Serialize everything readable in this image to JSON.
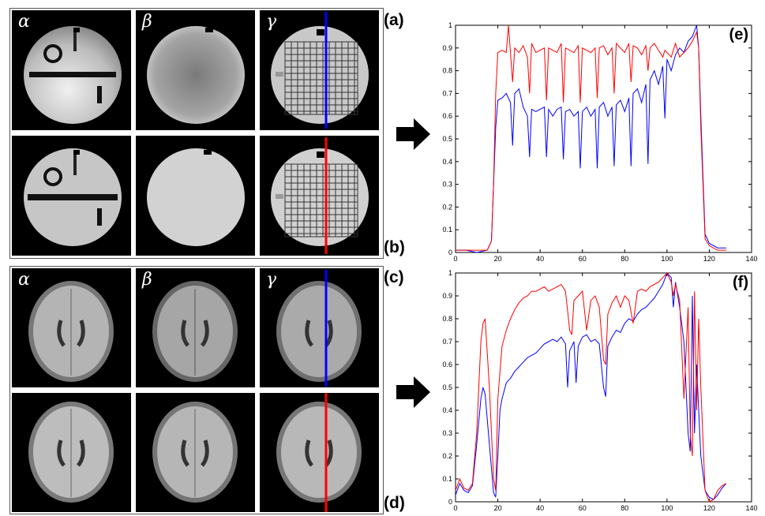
{
  "labels": {
    "row_a": "(a)",
    "row_b": "(b)",
    "row_c": "(c)",
    "row_d": "(d)",
    "chart_e": "(e)",
    "chart_f": "(f)"
  },
  "columns": [
    "α",
    "β",
    "γ"
  ],
  "colors": {
    "line_blue": "#0000ff",
    "line_red": "#ff0000"
  },
  "chart_data": [
    {
      "type": "line",
      "panel": "(e)",
      "xlim": [
        0,
        140
      ],
      "ylim": [
        0,
        1
      ],
      "xticks": [
        "0",
        "20",
        "40",
        "60",
        "80",
        "100",
        "120",
        "140"
      ],
      "yticks": [
        "0",
        "0.1",
        "0.2",
        "0.3",
        "0.4",
        "0.5",
        "0.6",
        "0.7",
        "0.8",
        "0.9",
        "1"
      ],
      "series": [
        {
          "color": "#0000ff",
          "x": [
            0,
            5,
            10,
            15,
            17,
            18,
            19,
            20,
            22,
            24,
            26,
            27,
            28,
            30,
            32,
            34,
            35,
            36,
            38,
            40,
            42,
            43,
            44,
            46,
            48,
            50,
            51,
            52,
            54,
            56,
            58,
            59,
            60,
            62,
            64,
            66,
            67,
            68,
            70,
            72,
            74,
            75,
            76,
            78,
            80,
            82,
            83,
            84,
            86,
            88,
            90,
            91,
            92,
            94,
            96,
            98,
            99,
            100,
            102,
            104,
            106,
            108,
            110,
            112,
            114,
            115,
            116,
            118,
            120,
            124,
            128
          ],
          "y": [
            0.01,
            0.01,
            0.0,
            0.01,
            0.05,
            0.3,
            0.55,
            0.67,
            0.68,
            0.7,
            0.66,
            0.47,
            0.7,
            0.72,
            0.64,
            0.6,
            0.42,
            0.63,
            0.62,
            0.63,
            0.64,
            0.42,
            0.63,
            0.6,
            0.63,
            0.64,
            0.41,
            0.62,
            0.63,
            0.6,
            0.62,
            0.37,
            0.62,
            0.64,
            0.6,
            0.63,
            0.37,
            0.64,
            0.66,
            0.6,
            0.64,
            0.38,
            0.65,
            0.67,
            0.62,
            0.68,
            0.38,
            0.7,
            0.72,
            0.66,
            0.74,
            0.39,
            0.76,
            0.8,
            0.74,
            0.82,
            0.59,
            0.85,
            0.8,
            0.87,
            0.9,
            0.88,
            0.93,
            0.95,
            1.0,
            0.9,
            0.6,
            0.08,
            0.04,
            0.02,
            0.02
          ]
        },
        {
          "color": "#ff0000",
          "x": [
            0,
            5,
            10,
            15,
            17,
            18,
            19,
            20,
            22,
            24,
            25,
            26,
            27,
            28,
            30,
            32,
            34,
            35,
            36,
            38,
            40,
            42,
            43,
            44,
            46,
            48,
            50,
            51,
            52,
            54,
            56,
            58,
            59,
            60,
            62,
            64,
            66,
            67,
            68,
            70,
            72,
            74,
            75,
            76,
            78,
            80,
            82,
            83,
            84,
            86,
            88,
            90,
            91,
            92,
            94,
            96,
            98,
            99,
            100,
            102,
            104,
            106,
            108,
            110,
            112,
            114,
            115,
            116,
            118,
            120,
            124,
            128
          ],
          "y": [
            0.01,
            0.01,
            0.01,
            0.01,
            0.05,
            0.3,
            0.7,
            0.88,
            0.89,
            0.88,
            1.0,
            0.88,
            0.75,
            0.9,
            0.88,
            0.91,
            0.86,
            0.7,
            0.92,
            0.88,
            0.89,
            0.9,
            0.67,
            0.9,
            0.89,
            0.88,
            0.92,
            0.66,
            0.9,
            0.89,
            0.88,
            0.91,
            0.66,
            0.9,
            0.89,
            0.88,
            0.9,
            0.68,
            0.9,
            0.91,
            0.87,
            0.9,
            0.7,
            0.92,
            0.9,
            0.88,
            0.92,
            0.75,
            0.91,
            0.9,
            0.87,
            0.91,
            0.8,
            0.9,
            0.92,
            0.89,
            0.86,
            0.89,
            0.88,
            0.86,
            0.92,
            0.86,
            0.88,
            0.9,
            0.93,
            0.97,
            0.9,
            0.55,
            0.06,
            0.03,
            0.01,
            0.01
          ]
        }
      ]
    },
    {
      "type": "line",
      "panel": "(f)",
      "xlim": [
        0,
        140
      ],
      "ylim": [
        0,
        1
      ],
      "xticks": [
        "0",
        "20",
        "40",
        "60",
        "80",
        "100",
        "120",
        "140"
      ],
      "yticks": [
        "0",
        "0.1",
        "0.2",
        "0.3",
        "0.4",
        "0.5",
        "0.6",
        "0.7",
        "0.8",
        "0.9",
        "1"
      ],
      "series": [
        {
          "color": "#0000ff",
          "x": [
            0,
            2,
            4,
            6,
            8,
            10,
            12,
            13,
            14,
            16,
            18,
            19,
            20,
            21,
            22,
            24,
            26,
            28,
            30,
            32,
            34,
            36,
            38,
            40,
            42,
            44,
            46,
            48,
            50,
            52,
            53,
            54,
            56,
            57,
            58,
            60,
            62,
            64,
            66,
            68,
            70,
            71,
            72,
            74,
            76,
            78,
            80,
            82,
            84,
            86,
            88,
            90,
            92,
            94,
            96,
            98,
            100,
            102,
            103,
            104,
            106,
            108,
            110,
            111,
            112,
            113,
            114,
            115,
            116,
            118,
            120,
            122,
            124,
            126,
            128
          ],
          "y": [
            0.03,
            0.08,
            0.05,
            0.04,
            0.07,
            0.25,
            0.45,
            0.5,
            0.47,
            0.25,
            0.04,
            0.02,
            0.2,
            0.4,
            0.45,
            0.52,
            0.54,
            0.57,
            0.59,
            0.61,
            0.63,
            0.64,
            0.65,
            0.67,
            0.69,
            0.7,
            0.71,
            0.7,
            0.72,
            0.69,
            0.5,
            0.66,
            0.7,
            0.52,
            0.68,
            0.72,
            0.73,
            0.7,
            0.71,
            0.69,
            0.5,
            0.46,
            0.68,
            0.72,
            0.75,
            0.74,
            0.78,
            0.8,
            0.79,
            0.82,
            0.84,
            0.85,
            0.87,
            0.89,
            0.92,
            0.95,
            1.0,
            0.98,
            0.85,
            0.96,
            0.85,
            0.7,
            0.3,
            0.22,
            0.9,
            0.3,
            0.6,
            0.4,
            0.2,
            0.05,
            0.02,
            0.01,
            0.03,
            0.06,
            0.08
          ]
        },
        {
          "color": "#ff0000",
          "x": [
            0,
            2,
            4,
            6,
            8,
            10,
            12,
            13,
            14,
            16,
            18,
            19,
            20,
            22,
            24,
            26,
            28,
            30,
            32,
            34,
            36,
            38,
            40,
            42,
            44,
            46,
            48,
            50,
            52,
            54,
            55,
            56,
            58,
            60,
            62,
            64,
            66,
            68,
            70,
            71,
            72,
            74,
            76,
            78,
            80,
            82,
            84,
            86,
            88,
            90,
            92,
            94,
            96,
            98,
            100,
            102,
            103,
            104,
            106,
            108,
            110,
            111,
            112,
            113,
            114,
            115,
            116,
            118,
            120,
            122,
            124,
            126,
            128
          ],
          "y": [
            0.05,
            0.1,
            0.06,
            0.05,
            0.08,
            0.3,
            0.7,
            0.78,
            0.8,
            0.5,
            0.1,
            0.05,
            0.45,
            0.68,
            0.75,
            0.8,
            0.84,
            0.87,
            0.89,
            0.9,
            0.92,
            0.92,
            0.93,
            0.94,
            0.92,
            0.93,
            0.94,
            0.95,
            0.92,
            0.75,
            0.73,
            0.88,
            0.9,
            0.92,
            0.75,
            0.88,
            0.9,
            0.85,
            0.62,
            0.6,
            0.82,
            0.87,
            0.9,
            0.85,
            0.9,
            0.88,
            0.78,
            0.92,
            0.93,
            0.92,
            0.94,
            0.95,
            0.96,
            0.98,
            1.0,
            0.96,
            0.9,
            0.95,
            0.88,
            0.45,
            0.85,
            0.3,
            0.2,
            0.92,
            0.4,
            0.8,
            0.5,
            0.05,
            0.0,
            0.01,
            0.05,
            0.07,
            0.08
          ]
        }
      ]
    }
  ]
}
